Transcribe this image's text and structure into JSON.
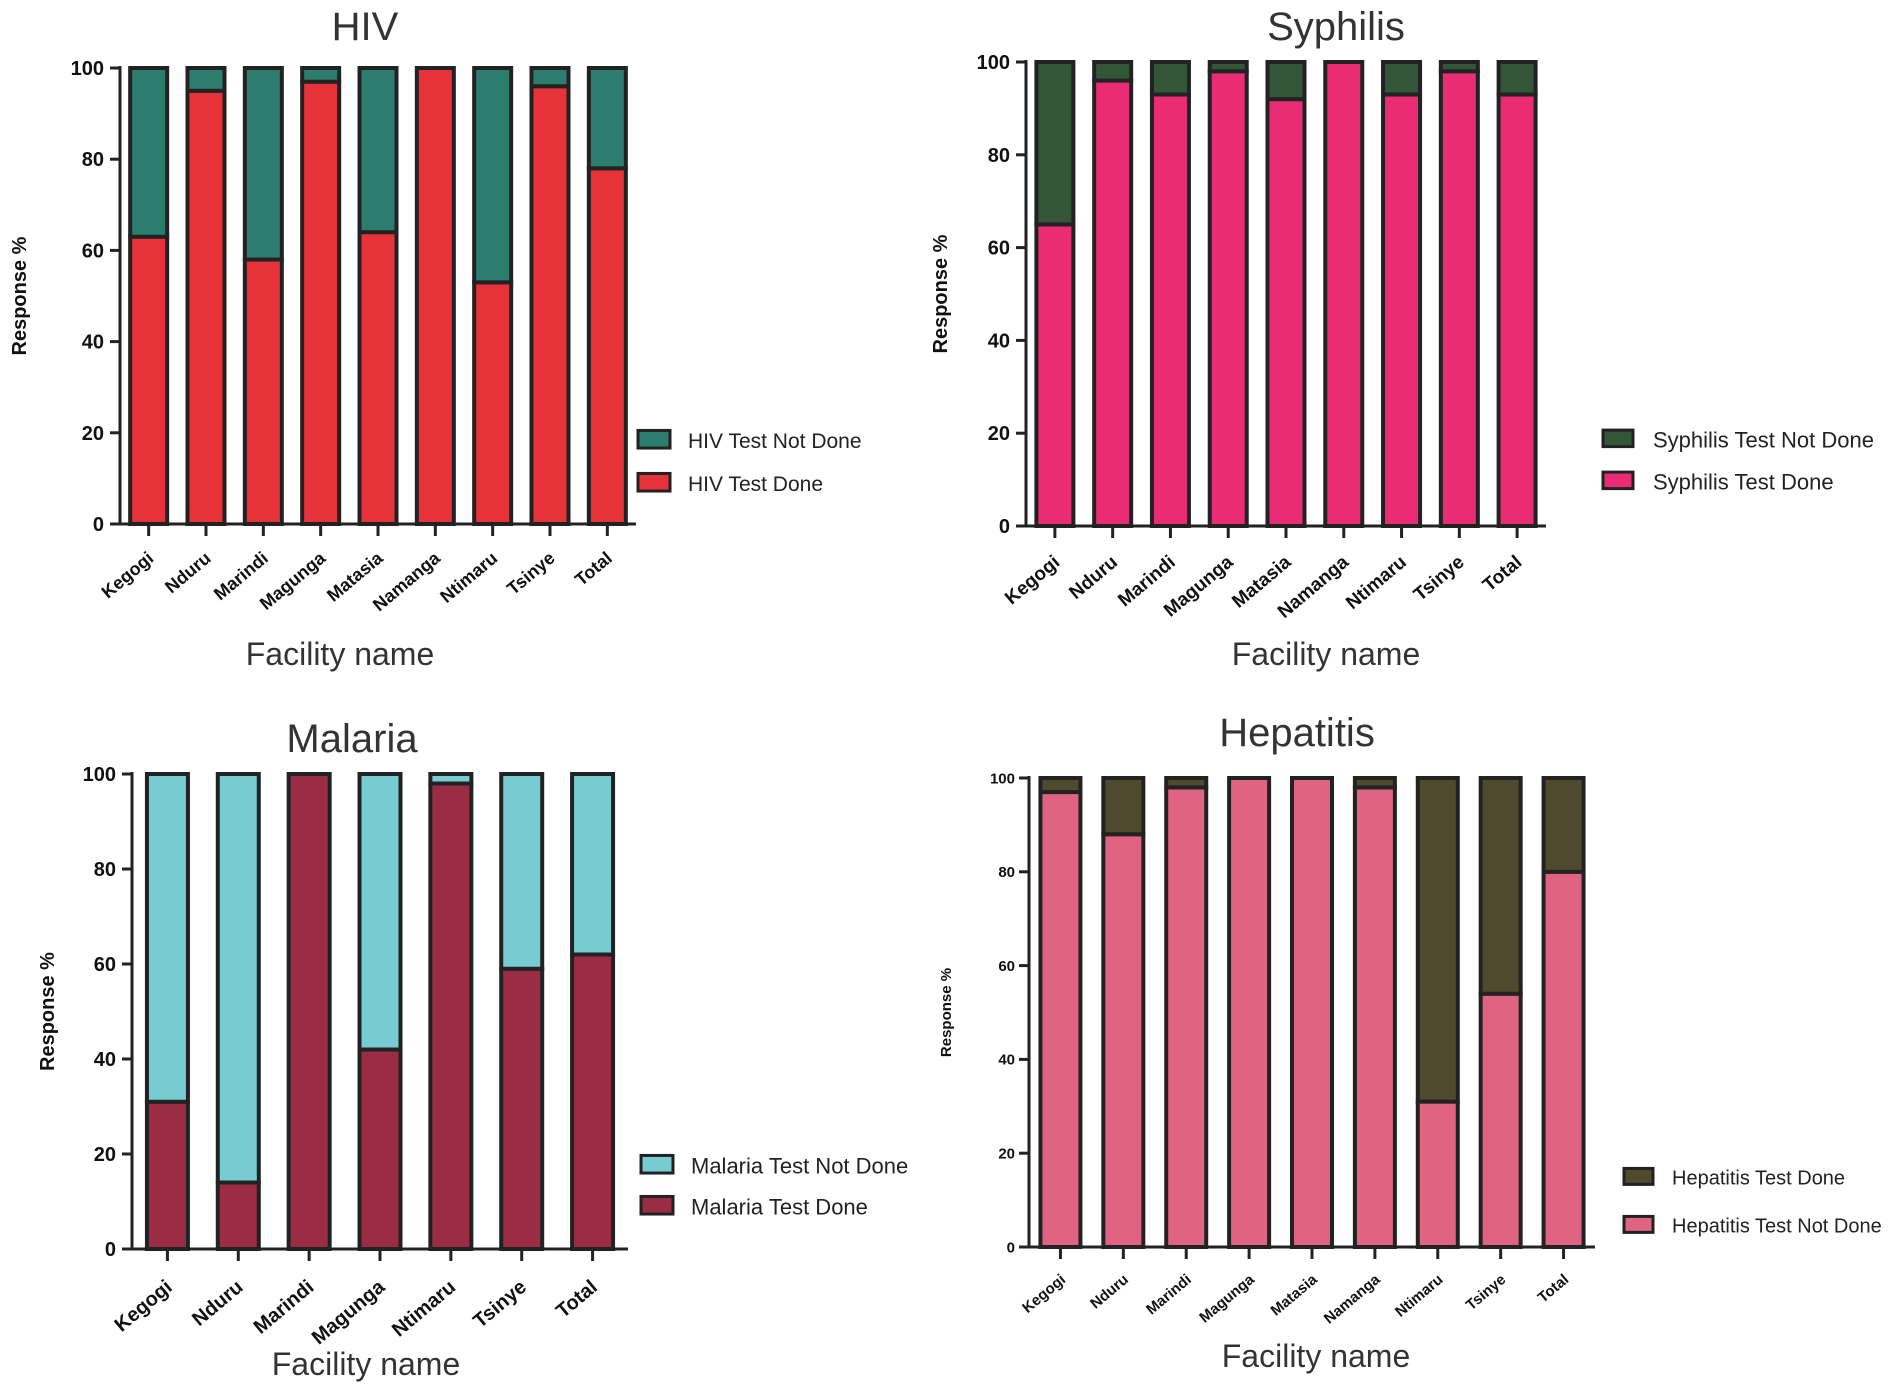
{
  "chart_data": [
    {
      "type": "bar",
      "stacked": true,
      "title": "HIV",
      "xlabel": "Facility name",
      "ylabel": "Response %",
      "ylim": [
        0,
        100
      ],
      "yticks": [
        "0",
        "20",
        "40",
        "60",
        "80",
        "100"
      ],
      "categories": [
        "Kegogi",
        "Nduru",
        "Marindi",
        "Magunga",
        "Matasia",
        "Namanga",
        "Ntimaru",
        "Tsinye",
        "Total"
      ],
      "series": [
        {
          "name": "HIV Test Done",
          "color": "#e8323a",
          "values": [
            63,
            95,
            58,
            97,
            64,
            100,
            53,
            96,
            78
          ]
        },
        {
          "name": "HIV Test Not Done",
          "color": "#2d7d6e",
          "values": [
            37,
            5,
            42,
            3,
            36,
            0,
            47,
            4,
            22
          ]
        }
      ],
      "legend": [
        "HIV Test Not Done",
        "HIV Test Done"
      ],
      "legend_position": "right"
    },
    {
      "type": "bar",
      "stacked": true,
      "title": "Syphilis",
      "xlabel": "Facility name",
      "ylabel": "Response %",
      "ylim": [
        0,
        100
      ],
      "yticks": [
        "0",
        "20",
        "40",
        "60",
        "80",
        "100"
      ],
      "categories": [
        "Kegogi",
        "Nduru",
        "Marindi",
        "Magunga",
        "Matasia",
        "Namanga",
        "Ntimaru",
        "Tsinye",
        "Total"
      ],
      "series": [
        {
          "name": "Syphilis Test Done",
          "color": "#ea2c75",
          "values": [
            65,
            96,
            93,
            98,
            92,
            100,
            93,
            98,
            93
          ]
        },
        {
          "name": "Syphilis Test Not Done",
          "color": "#345638",
          "values": [
            35,
            4,
            7,
            2,
            8,
            0,
            7,
            2,
            7
          ]
        }
      ],
      "legend": [
        "Syphilis Test Not Done",
        "Syphilis Test Done"
      ],
      "legend_position": "right"
    },
    {
      "type": "bar",
      "stacked": true,
      "title": "Malaria",
      "xlabel": "Facility name",
      "ylabel": "Response %",
      "ylim": [
        0,
        100
      ],
      "yticks": [
        "0",
        "20",
        "40",
        "60",
        "80",
        "100"
      ],
      "categories": [
        "Kegogi",
        "Nduru",
        "Marindi",
        "Magunga",
        "Ntimaru",
        "Tsinye",
        "Total"
      ],
      "series": [
        {
          "name": "Malaria Test Done",
          "color": "#9a2d44",
          "values": [
            31,
            14,
            100,
            42,
            98,
            59,
            62
          ]
        },
        {
          "name": "Malaria Test Not Done",
          "color": "#76ccd1",
          "values": [
            69,
            86,
            0,
            58,
            2,
            41,
            38
          ]
        }
      ],
      "legend": [
        "Malaria Test Not Done",
        "Malaria Test Done"
      ],
      "legend_position": "right"
    },
    {
      "type": "bar",
      "stacked": true,
      "title": "Hepatitis",
      "xlabel": "Facility name",
      "ylabel": "Response %",
      "ylim": [
        0,
        100
      ],
      "yticks": [
        "0",
        "20",
        "40",
        "60",
        "80",
        "100"
      ],
      "categories": [
        "Kegogi",
        "Nduru",
        "Marindi",
        "Magunga",
        "Matasia",
        "Namanga",
        "Ntimaru",
        "Tsinye",
        "Total"
      ],
      "series": [
        {
          "name": "Hepatitis Test Not Done",
          "color": "#e06381",
          "values": [
            97,
            88,
            98,
            100,
            100,
            98,
            31,
            54,
            80
          ]
        },
        {
          "name": "Hepatitis Test Done",
          "color": "#4f4a2e",
          "values": [
            3,
            12,
            2,
            0,
            0,
            2,
            69,
            46,
            20
          ]
        }
      ],
      "legend": [
        "Hepatitis Test Done",
        "Hepatitis Test Not Done"
      ],
      "legend_position": "right"
    }
  ]
}
